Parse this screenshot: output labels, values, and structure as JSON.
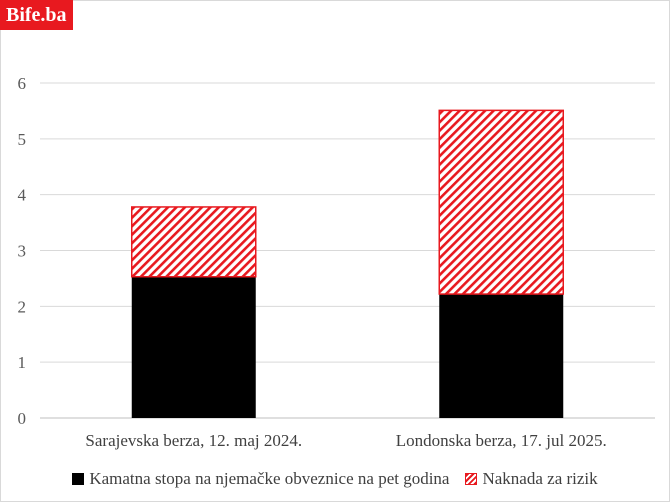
{
  "brand": {
    "logo_text": "Bife.ba",
    "accent": "#e8191f"
  },
  "chart_data": {
    "type": "bar",
    "stacked": true,
    "categories": [
      "Sarajevska berza, 12. maj  2024.",
      "Londonska berza, 17. jul  2025."
    ],
    "series": [
      {
        "name": "Kamatna stopa  na njemačke obveznice na pet godina",
        "values": [
          2.53,
          2.22
        ],
        "color": "#000000",
        "pattern": "solid"
      },
      {
        "name": "Naknada za rizik",
        "values": [
          1.25,
          3.29
        ],
        "color": "#e8191f",
        "pattern": "diagonal-hatch"
      }
    ],
    "ylim": [
      0,
      6
    ],
    "yticks": [
      "0",
      "1",
      "2",
      "3",
      "4",
      "5",
      "6"
    ],
    "grid": true,
    "legend": "bottom"
  }
}
